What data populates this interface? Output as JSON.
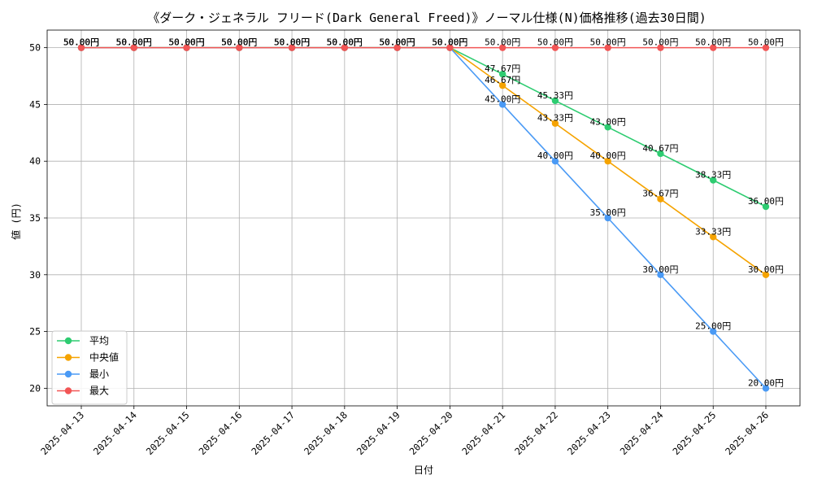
{
  "chart_data": {
    "type": "line",
    "title": "《ダーク・ジェネラル フリード(Dark General Freed)》ノーマル仕様(N)価格推移(過去30日間)",
    "xlabel": "日付",
    "ylabel": "値 (円)",
    "ylim": [
      18.45,
      51.55
    ],
    "yticks": [
      20,
      25,
      30,
      35,
      40,
      45,
      50
    ],
    "grid": true,
    "legend_position": "lower-left",
    "label_suffix": "円",
    "categories": [
      "2025-04-13",
      "2025-04-14",
      "2025-04-15",
      "2025-04-16",
      "2025-04-17",
      "2025-04-18",
      "2025-04-19",
      "2025-04-20",
      "2025-04-21",
      "2025-04-22",
      "2025-04-23",
      "2025-04-24",
      "2025-04-25",
      "2025-04-26"
    ],
    "series": [
      {
        "name": "平均",
        "color": "#2ecc71",
        "values": [
          50,
          50,
          50,
          50,
          50,
          50,
          50,
          50,
          47.67,
          45.33,
          43.0,
          40.67,
          38.33,
          36.0
        ]
      },
      {
        "name": "中央値",
        "color": "#f5a300",
        "values": [
          50,
          50,
          50,
          50,
          50,
          50,
          50,
          50,
          46.67,
          43.33,
          40.0,
          36.67,
          33.33,
          30.0
        ]
      },
      {
        "name": "最小",
        "color": "#4a9af5",
        "values": [
          50,
          50,
          50,
          50,
          50,
          50,
          50,
          50,
          45.0,
          40.0,
          35.0,
          30.0,
          25.0,
          20.0
        ]
      },
      {
        "name": "最大",
        "color": "#f25555",
        "values": [
          50,
          50,
          50,
          50,
          50,
          50,
          50,
          50,
          50.0,
          50.0,
          50.0,
          50.0,
          50.0,
          50.0
        ]
      }
    ]
  }
}
